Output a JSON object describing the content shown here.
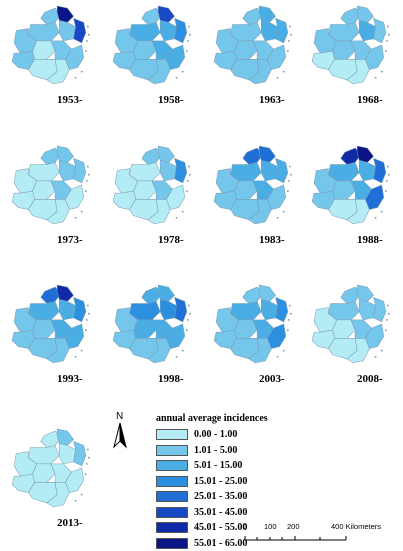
{
  "colors": {
    "c0": "#b3ecf5",
    "c1": "#74c6ea",
    "c2": "#4aaee5",
    "c3": "#2c8fe0",
    "c4": "#1f6fd6",
    "c5": "#1849c4",
    "c6": "#0e2aa6",
    "c7": "#0a1685"
  },
  "panels": [
    {
      "year": "1953-",
      "regions": [
        "c1",
        "c7",
        "c1",
        "c1",
        "c1",
        "c0",
        "c5",
        "c1",
        "c1",
        "c0",
        "c0",
        "c1"
      ]
    },
    {
      "year": "1958-",
      "regions": [
        "c1",
        "c5",
        "c2",
        "c1",
        "c2",
        "c1",
        "c3",
        "c2",
        "c1",
        "c1",
        "c1",
        "c2"
      ]
    },
    {
      "year": "1963-",
      "regions": [
        "c1",
        "c2",
        "c1",
        "c1",
        "c2",
        "c1",
        "c2",
        "c1",
        "c1",
        "c1",
        "c1",
        "c1"
      ]
    },
    {
      "year": "1968-",
      "regions": [
        "c1",
        "c1",
        "c1",
        "c1",
        "c2",
        "c1",
        "c1",
        "c1",
        "c0",
        "c0",
        "c0",
        "c1"
      ]
    },
    {
      "year": "1973-",
      "regions": [
        "c1",
        "c1",
        "c0",
        "c0",
        "c1",
        "c0",
        "c1",
        "c1",
        "c0",
        "c0",
        "c0",
        "c0"
      ]
    },
    {
      "year": "1978-",
      "regions": [
        "c1",
        "c1",
        "c0",
        "c0",
        "c1",
        "c0",
        "c3",
        "c1",
        "c0",
        "c0",
        "c0",
        "c0"
      ]
    },
    {
      "year": "1983-",
      "regions": [
        "c4",
        "c4",
        "c2",
        "c1",
        "c2",
        "c1",
        "c2",
        "c2",
        "c1",
        "c1",
        "c1",
        "c1"
      ]
    },
    {
      "year": "1988-",
      "regions": [
        "c6",
        "c7",
        "c2",
        "c1",
        "c2",
        "c1",
        "c4",
        "c2",
        "c1",
        "c0",
        "c0",
        "c4"
      ]
    },
    {
      "year": "1993-",
      "regions": [
        "c4",
        "c6",
        "c2",
        "c1",
        "c2",
        "c1",
        "c3",
        "c2",
        "c1",
        "c1",
        "c1",
        "c2"
      ]
    },
    {
      "year": "1998-",
      "regions": [
        "c2",
        "c2",
        "c3",
        "c1",
        "c3",
        "c2",
        "c4",
        "c2",
        "c1",
        "c1",
        "c1",
        "c2"
      ]
    },
    {
      "year": "2003-",
      "regions": [
        "c1",
        "c1",
        "c2",
        "c1",
        "c2",
        "c1",
        "c3",
        "c2",
        "c1",
        "c1",
        "c1",
        "c3"
      ]
    },
    {
      "year": "2008-",
      "regions": [
        "c1",
        "c1",
        "c1",
        "c0",
        "c1",
        "c0",
        "c1",
        "c1",
        "c0",
        "c0",
        "c0",
        "c1"
      ]
    },
    {
      "year": "2013-",
      "regions": [
        "c0",
        "c1",
        "c0",
        "c0",
        "c0",
        "c0",
        "c1",
        "c0",
        "c0",
        "c0",
        "c0",
        "c0"
      ]
    }
  ],
  "legend": {
    "title": "annual average incidences",
    "items": [
      {
        "label": "0.00 - 1.00",
        "color": "c0"
      },
      {
        "label": "1.01 - 5.00",
        "color": "c1"
      },
      {
        "label": "5.01 - 15.00",
        "color": "c2"
      },
      {
        "label": "15.01 - 25.00",
        "color": "c3"
      },
      {
        "label": "25.01 - 35.00",
        "color": "c4"
      },
      {
        "label": "35.01 - 45.00",
        "color": "c5"
      },
      {
        "label": "45.01 - 55.00",
        "color": "c6"
      },
      {
        "label": "55.01 - 65.00",
        "color": "c7"
      }
    ]
  },
  "north_label": "N",
  "scale": {
    "labels": [
      "0",
      "100",
      "200",
      "400 Kilometers"
    ]
  }
}
